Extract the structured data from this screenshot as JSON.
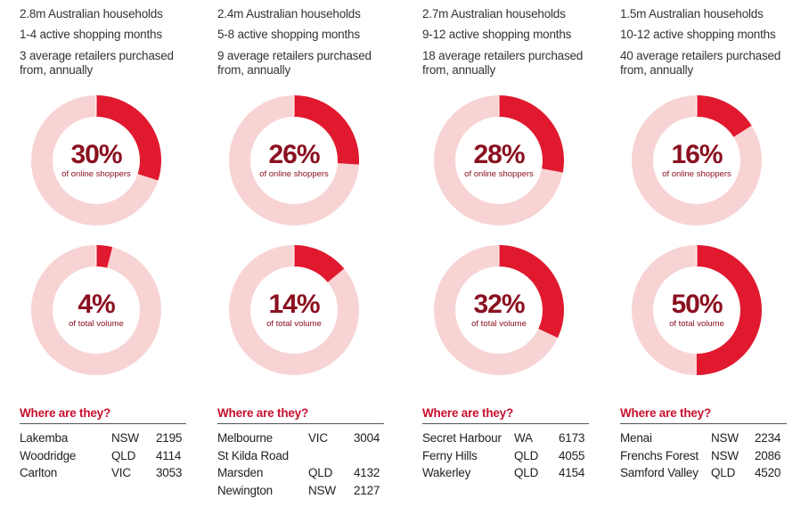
{
  "colors": {
    "accent": "#e0192e",
    "ring": "#f8d3d4",
    "percent_text": "#8a1020",
    "heading": "#c8102e"
  },
  "where_label": "Where are they?",
  "chart_data": [
    {
      "type": "pie",
      "segment": {
        "households": "2.8m Australian households",
        "active_months": "1-4 active shopping months",
        "retailers": "3 average retailers purchased from, annually"
      },
      "donuts": [
        {
          "value": 30,
          "percent_label": "30%",
          "label": "of online shoppers"
        },
        {
          "value": 4,
          "percent_label": "4%",
          "label": "of total volume"
        }
      ],
      "locations": [
        {
          "suburb": "Lakemba",
          "state": "NSW",
          "postcode": "2195"
        },
        {
          "suburb": "Woodridge",
          "state": "QLD",
          "postcode": "4114"
        },
        {
          "suburb": "Carlton",
          "state": "VIC",
          "postcode": "3053"
        }
      ]
    },
    {
      "type": "pie",
      "segment": {
        "households": "2.4m Australian households",
        "active_months": "5-8 active shopping months",
        "retailers": "9 average retailers purchased from, annually"
      },
      "donuts": [
        {
          "value": 26,
          "percent_label": "26%",
          "label": "of online shoppers"
        },
        {
          "value": 14,
          "percent_label": "14%",
          "label": "of total volume"
        }
      ],
      "locations": [
        {
          "suburb": "Melbourne",
          "state": "VIC",
          "postcode": "3004"
        },
        {
          "suburb": "St Kilda Road",
          "state": "",
          "postcode": ""
        },
        {
          "suburb": "Marsden",
          "state": "QLD",
          "postcode": "4132"
        },
        {
          "suburb": "Newington",
          "state": "NSW",
          "postcode": "2127"
        }
      ]
    },
    {
      "type": "pie",
      "segment": {
        "households": "2.7m Australian households",
        "active_months": "9-12 active shopping months",
        "retailers": "18 average retailers purchased from, annually"
      },
      "donuts": [
        {
          "value": 28,
          "percent_label": "28%",
          "label": "of online shoppers"
        },
        {
          "value": 32,
          "percent_label": "32%",
          "label": "of total volume"
        }
      ],
      "locations": [
        {
          "suburb": "Secret Harbour",
          "state": "WA",
          "postcode": "6173"
        },
        {
          "suburb": "Ferny Hills",
          "state": "QLD",
          "postcode": "4055"
        },
        {
          "suburb": "Wakerley",
          "state": "QLD",
          "postcode": "4154"
        }
      ]
    },
    {
      "type": "pie",
      "segment": {
        "households": "1.5m Australian households",
        "active_months": "10-12 active shopping months",
        "retailers": "40 average retailers purchased from, annually"
      },
      "donuts": [
        {
          "value": 16,
          "percent_label": "16%",
          "label": "of online shoppers"
        },
        {
          "value": 50,
          "percent_label": "50%",
          "label": "of total volume"
        }
      ],
      "locations": [
        {
          "suburb": "Menai",
          "state": "NSW",
          "postcode": "2234"
        },
        {
          "suburb": "Frenchs Forest",
          "state": "NSW",
          "postcode": "2086"
        },
        {
          "suburb": "Samford Valley",
          "state": "QLD",
          "postcode": "4520"
        }
      ]
    }
  ]
}
